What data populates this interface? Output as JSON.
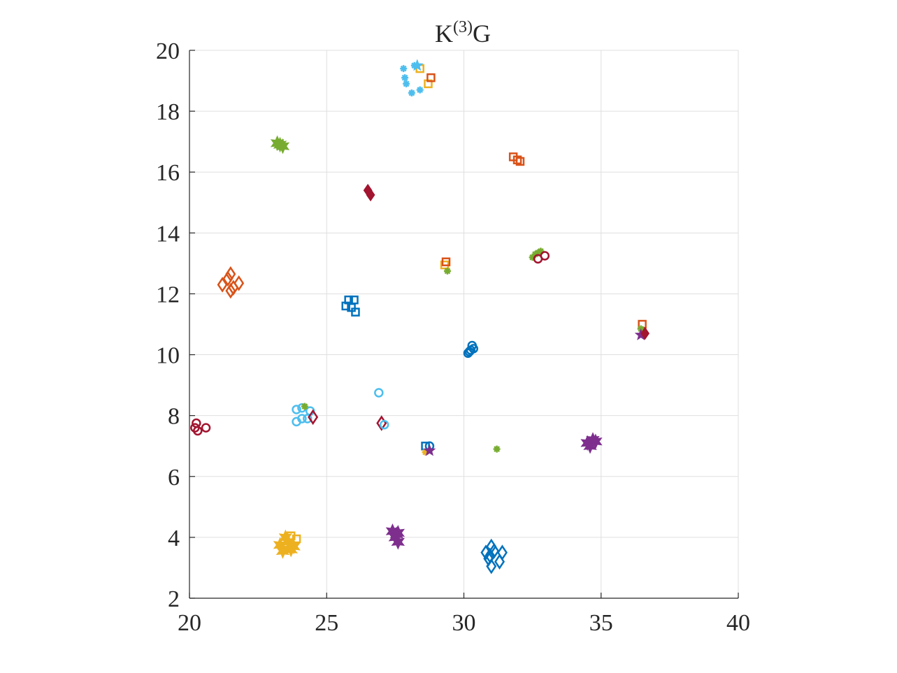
{
  "chart_data": {
    "type": "scatter",
    "title": {
      "base": "K",
      "superscript": "(3)",
      "suffix": "G"
    },
    "xlabel": "",
    "ylabel": "",
    "xlim": [
      20,
      40
    ],
    "ylim": [
      2,
      20
    ],
    "x_ticks": [
      "20",
      "25",
      "30",
      "35",
      "40"
    ],
    "y_ticks": [
      "2",
      "4",
      "6",
      "8",
      "10",
      "12",
      "14",
      "16",
      "18",
      "20"
    ],
    "grid": true,
    "legend": "none",
    "colors": {
      "blue": "#0072BD",
      "orange": "#D95319",
      "yellow": "#EDB120",
      "purple": "#7E2F8E",
      "green": "#77AC30",
      "cyan": "#4DBEEE",
      "darkred": "#A2142F"
    },
    "series": [
      {
        "color": "cyan",
        "marker": "asterisk",
        "points": [
          [
            27.8,
            19.4
          ],
          [
            27.85,
            19.1
          ],
          [
            27.9,
            18.9
          ],
          [
            28.1,
            18.6
          ],
          [
            28.4,
            18.7
          ],
          [
            28.2,
            19.5
          ]
        ]
      },
      {
        "color": "yellow",
        "marker": "square",
        "points": [
          [
            28.4,
            19.4
          ],
          [
            28.7,
            18.9
          ]
        ]
      },
      {
        "color": "orange",
        "marker": "square",
        "points": [
          [
            28.8,
            19.1
          ]
        ]
      },
      {
        "color": "cyan",
        "marker": "star",
        "points": [
          [
            28.3,
            19.5
          ]
        ]
      },
      {
        "color": "green",
        "marker": "hexagram",
        "points": [
          [
            23.2,
            16.95
          ],
          [
            23.4,
            16.85
          ],
          [
            23.3,
            16.9
          ]
        ]
      },
      {
        "color": "orange",
        "marker": "square",
        "points": [
          [
            31.8,
            16.5
          ],
          [
            31.95,
            16.4
          ],
          [
            32.05,
            16.35
          ]
        ]
      },
      {
        "color": "darkred",
        "marker": "diamond-filled",
        "points": [
          [
            26.5,
            15.4
          ],
          [
            26.6,
            15.25
          ]
        ]
      },
      {
        "color": "green",
        "marker": "asterisk",
        "points": [
          [
            32.6,
            13.3
          ],
          [
            32.7,
            13.35
          ],
          [
            32.5,
            13.2
          ],
          [
            32.8,
            13.4
          ]
        ]
      },
      {
        "color": "darkred",
        "marker": "circle",
        "points": [
          [
            32.7,
            13.15
          ],
          [
            32.95,
            13.25
          ]
        ]
      },
      {
        "color": "yellow",
        "marker": "square",
        "points": [
          [
            29.3,
            12.95
          ]
        ]
      },
      {
        "color": "orange",
        "marker": "square",
        "points": [
          [
            29.35,
            13.05
          ]
        ]
      },
      {
        "color": "green",
        "marker": "asterisk",
        "points": [
          [
            29.4,
            12.75
          ]
        ]
      },
      {
        "color": "orange",
        "marker": "diamond",
        "points": [
          [
            21.2,
            12.3
          ],
          [
            21.4,
            12.5
          ],
          [
            21.5,
            12.65
          ],
          [
            21.6,
            12.2
          ],
          [
            21.8,
            12.35
          ],
          [
            21.5,
            12.1
          ]
        ]
      },
      {
        "color": "blue",
        "marker": "square",
        "points": [
          [
            25.7,
            11.6
          ],
          [
            25.8,
            11.8
          ],
          [
            25.9,
            11.55
          ],
          [
            26.0,
            11.8
          ],
          [
            26.05,
            11.4
          ]
        ]
      },
      {
        "color": "blue",
        "marker": "circle",
        "points": [
          [
            30.2,
            10.1
          ],
          [
            30.3,
            10.3
          ],
          [
            30.35,
            10.2
          ],
          [
            30.25,
            10.15
          ],
          [
            30.15,
            10.05
          ]
        ]
      },
      {
        "color": "orange",
        "marker": "square",
        "points": [
          [
            36.5,
            11.0
          ]
        ]
      },
      {
        "color": "green",
        "marker": "asterisk",
        "points": [
          [
            36.45,
            10.85
          ]
        ]
      },
      {
        "color": "purple",
        "marker": "star",
        "points": [
          [
            36.45,
            10.65
          ]
        ]
      },
      {
        "color": "darkred",
        "marker": "diamond-filled",
        "points": [
          [
            36.6,
            10.7
          ]
        ]
      },
      {
        "color": "cyan",
        "marker": "circle",
        "points": [
          [
            26.9,
            8.75
          ]
        ]
      },
      {
        "color": "cyan",
        "marker": "circle",
        "points": [
          [
            23.9,
            8.2
          ],
          [
            24.1,
            7.9
          ],
          [
            23.9,
            7.8
          ],
          [
            24.3,
            7.9
          ],
          [
            24.4,
            8.15
          ],
          [
            24.1,
            8.25
          ]
        ]
      },
      {
        "color": "green",
        "marker": "asterisk",
        "points": [
          [
            24.2,
            8.3
          ]
        ]
      },
      {
        "color": "darkred",
        "marker": "diamond",
        "points": [
          [
            24.5,
            7.95
          ]
        ]
      },
      {
        "color": "darkred",
        "marker": "circle",
        "points": [
          [
            20.2,
            7.6
          ],
          [
            20.25,
            7.75
          ],
          [
            20.3,
            7.5
          ],
          [
            20.6,
            7.6
          ]
        ]
      },
      {
        "color": "darkred",
        "marker": "diamond",
        "points": [
          [
            27.0,
            7.75
          ]
        ]
      },
      {
        "color": "cyan",
        "marker": "circle",
        "points": [
          [
            27.1,
            7.7
          ]
        ]
      },
      {
        "color": "blue",
        "marker": "square",
        "points": [
          [
            28.6,
            7.0
          ]
        ]
      },
      {
        "color": "blue",
        "marker": "circle",
        "points": [
          [
            28.75,
            7.0
          ]
        ]
      },
      {
        "color": "yellow",
        "marker": "asterisk",
        "points": [
          [
            28.6,
            6.8
          ]
        ]
      },
      {
        "color": "purple",
        "marker": "star",
        "points": [
          [
            28.75,
            6.85
          ]
        ]
      },
      {
        "color": "green",
        "marker": "asterisk",
        "points": [
          [
            31.2,
            6.9
          ]
        ]
      },
      {
        "color": "purple",
        "marker": "hexagram",
        "points": [
          [
            34.5,
            7.1
          ],
          [
            34.7,
            7.2
          ],
          [
            34.6,
            7.0
          ],
          [
            34.8,
            7.15
          ]
        ]
      },
      {
        "color": "yellow",
        "marker": "hexagram",
        "points": [
          [
            23.3,
            3.75
          ],
          [
            23.5,
            4.0
          ],
          [
            23.7,
            3.6
          ],
          [
            23.6,
            3.85
          ],
          [
            23.8,
            3.7
          ],
          [
            23.4,
            3.55
          ]
        ]
      },
      {
        "color": "yellow",
        "marker": "square",
        "points": [
          [
            23.7,
            4.05
          ],
          [
            23.9,
            3.95
          ]
        ]
      },
      {
        "color": "purple",
        "marker": "hexagram",
        "points": [
          [
            27.4,
            4.2
          ],
          [
            27.6,
            4.15
          ],
          [
            27.5,
            4.0
          ],
          [
            27.6,
            3.85
          ],
          [
            27.55,
            4.1
          ]
        ]
      },
      {
        "color": "blue",
        "marker": "diamond",
        "points": [
          [
            30.8,
            3.5
          ],
          [
            30.9,
            3.3
          ],
          [
            31.0,
            3.7
          ],
          [
            31.1,
            3.55
          ],
          [
            31.3,
            3.2
          ],
          [
            31.4,
            3.5
          ],
          [
            31.0,
            3.05
          ],
          [
            30.95,
            3.4
          ]
        ]
      }
    ]
  }
}
